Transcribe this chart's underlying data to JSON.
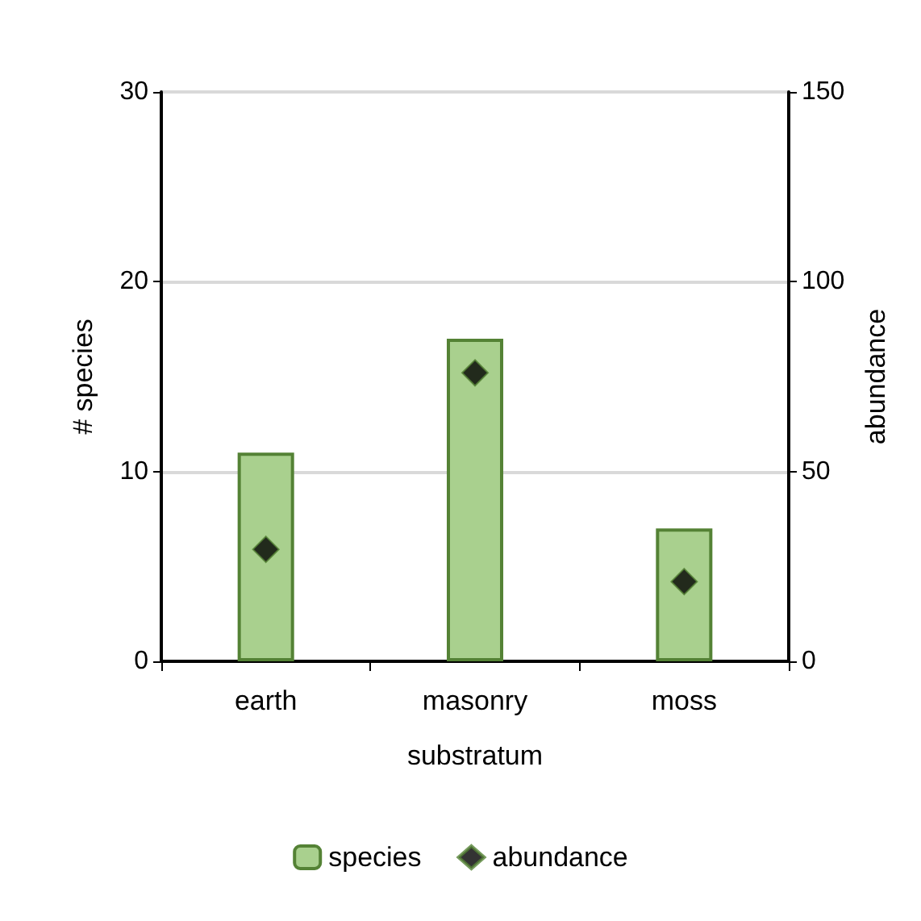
{
  "chart_data": {
    "type": "bar",
    "xlabel": "substratum",
    "ylabel": "# species",
    "y2label": "abundance",
    "categories": [
      "earth",
      "masonry",
      "moss"
    ],
    "series": [
      {
        "name": "species",
        "color": "#a9d08e",
        "values": [
          11,
          17,
          7
        ]
      },
      {
        "name": "abundance",
        "type": "scatter",
        "axis": "y2",
        "color": "#000000",
        "marker": "diamond",
        "values": [
          29.5,
          76,
          21
        ]
      }
    ],
    "ylim": [
      0,
      30
    ],
    "yticks": [
      0,
      10,
      20,
      30
    ],
    "y2lim": [
      0,
      150
    ],
    "y2ticks": [
      0,
      50,
      100,
      150
    ],
    "grid": "y",
    "legend": "bottom"
  }
}
